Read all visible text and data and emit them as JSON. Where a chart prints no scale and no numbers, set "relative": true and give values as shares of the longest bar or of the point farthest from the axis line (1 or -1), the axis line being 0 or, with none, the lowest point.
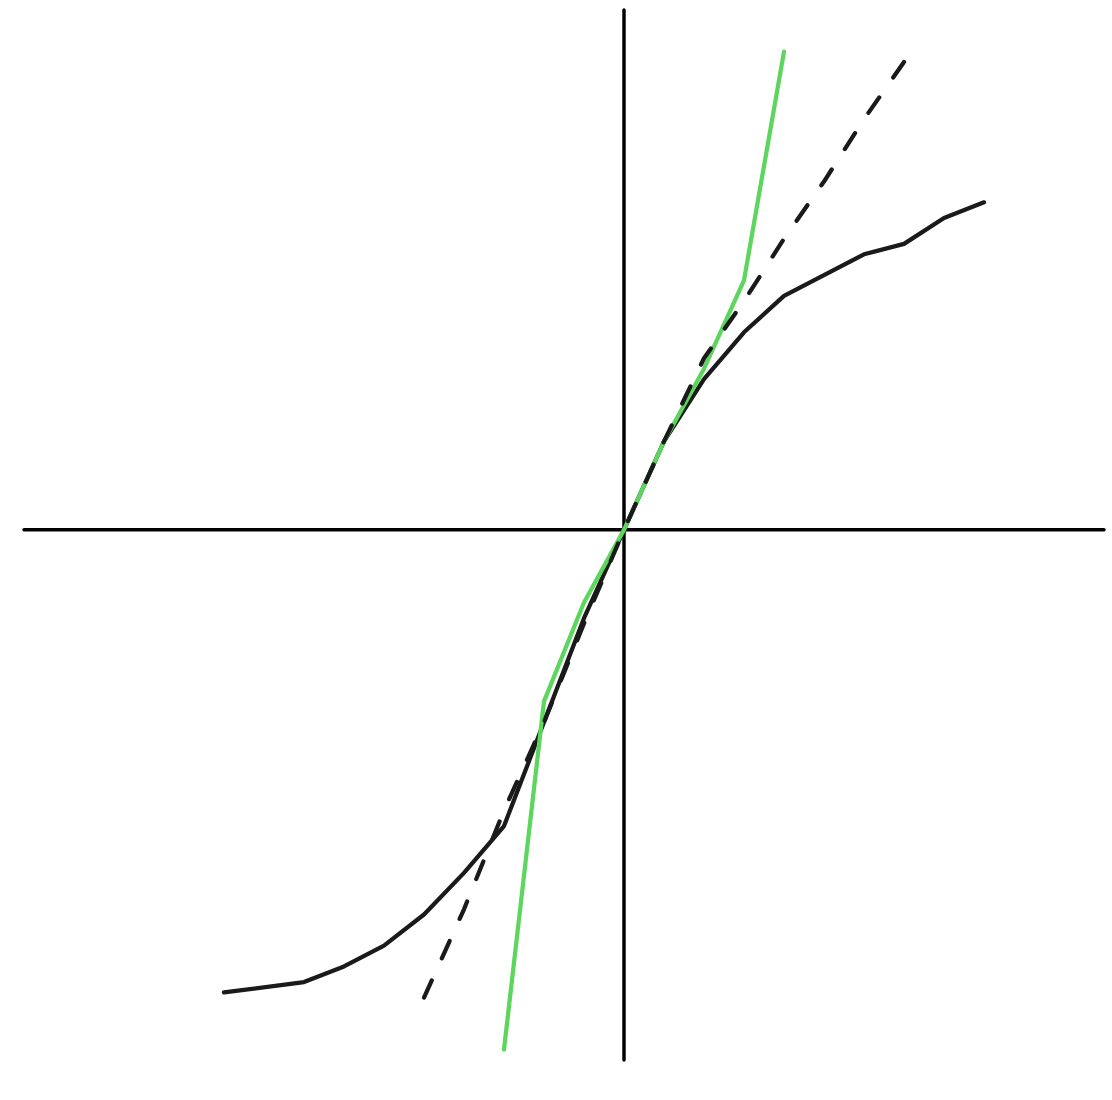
{
  "chart_data": {
    "type": "line",
    "relative": true,
    "categories": [
      null,
      null,
      null,
      null,
      null,
      null,
      null,
      null,
      null,
      null,
      null,
      null,
      null,
      null,
      null,
      null,
      null,
      null,
      null,
      null,
      null,
      null,
      null,
      null,
      null
    ],
    "series": [
      {
        "color": "#1a1a1a",
        "line_style": "solid",
        "values": [
          null,
          null,
          -0.89,
          -0.88,
          -0.87,
          -0.84,
          -0.8,
          -0.74,
          -0.66,
          -0.57,
          -0.37,
          -0.17,
          0,
          0.17,
          0.29,
          0.38,
          0.45,
          0.49,
          0.53,
          0.55,
          0.6,
          0.63,
          null,
          null,
          null
        ]
      },
      {
        "color": "#5cd65c",
        "line_style": "solid",
        "values": [
          null,
          null,
          null,
          null,
          null,
          null,
          null,
          null,
          null,
          -1,
          -0.33,
          -0.14,
          0,
          0.17,
          0.31,
          0.48,
          0.92,
          null,
          null,
          null,
          null,
          null,
          null,
          null,
          null
        ]
      },
      {
        "color": "#1a1a1a",
        "line_style": "dashed",
        "values": [
          null,
          null,
          null,
          null,
          null,
          null,
          null,
          -0.9,
          -0.73,
          -0.54,
          -0.37,
          -0.18,
          0,
          0.17,
          0.33,
          0.44,
          0.56,
          0.67,
          0.79,
          0.9,
          null,
          null,
          null,
          null,
          null
        ]
      }
    ]
  }
}
